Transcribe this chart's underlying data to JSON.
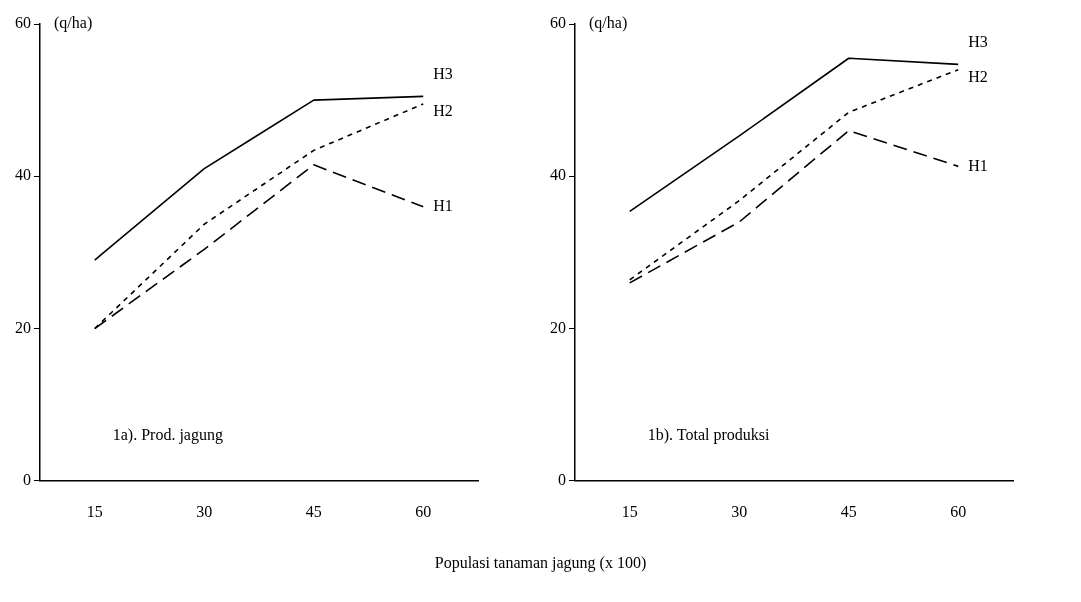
{
  "chart_data": [
    {
      "type": "line",
      "title": "1a). Prod. jagung",
      "ylabel": "(q/ha)",
      "xlabel": "Populasi tanaman jagung (x 100)",
      "categories": [
        "15",
        "30",
        "45",
        "60"
      ],
      "ylim": [
        0,
        60
      ],
      "yticks": [
        0,
        20,
        40,
        60
      ],
      "grid": false,
      "legend": false,
      "marker": "none",
      "series": [
        {
          "name": "H3",
          "color": "#000000",
          "line_style": "solid",
          "values": [
            29,
            41,
            50,
            50.5
          ]
        },
        {
          "name": "H2",
          "color": "#000000",
          "line_style": "dotted",
          "values": [
            20,
            33.7,
            43.4,
            49.5
          ]
        },
        {
          "name": "H1",
          "color": "#000000",
          "line_style": "dashed",
          "values": [
            20,
            30.4,
            41.5,
            36
          ]
        }
      ]
    },
    {
      "type": "line",
      "title": "1b). Total produksi",
      "ylabel": "(q/ha)",
      "categories": [
        "15",
        "30",
        "45",
        "60"
      ],
      "ylim": [
        0,
        60
      ],
      "yticks": [
        0,
        20,
        40,
        60
      ],
      "grid": false,
      "legend": false,
      "marker": "none",
      "series": [
        {
          "name": "H3",
          "color": "#000000",
          "line_style": "solid",
          "values": [
            35.4,
            45.3,
            55.5,
            54.7
          ]
        },
        {
          "name": "H2",
          "color": "#000000",
          "line_style": "dotted",
          "values": [
            26.4,
            36.8,
            48.4,
            54
          ]
        },
        {
          "name": "H1",
          "color": "#000000",
          "line_style": "dashed",
          "values": [
            26,
            34,
            46,
            41.3
          ]
        }
      ]
    }
  ]
}
